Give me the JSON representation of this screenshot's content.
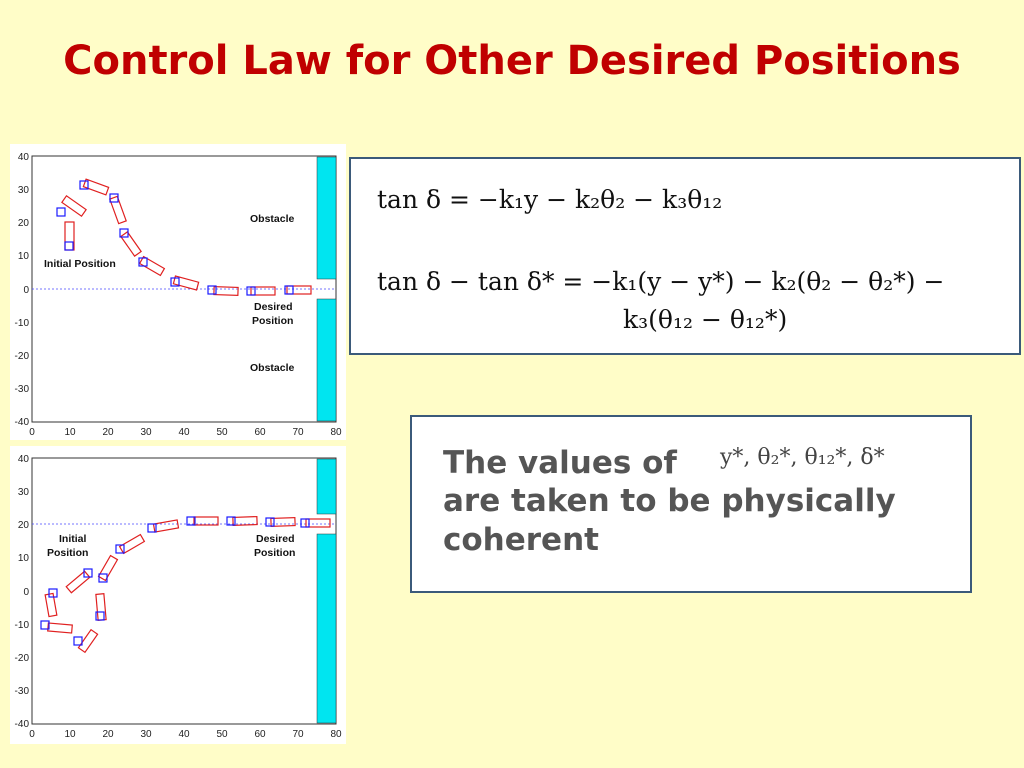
{
  "title": "Control Law for Other Desired Positions",
  "plots": [
    {
      "id": "top",
      "y_ticks": [
        "40",
        "30",
        "20",
        "10",
        "0",
        "-10",
        "-20",
        "-30",
        "-40"
      ],
      "x_ticks": [
        "0",
        "10",
        "20",
        "30",
        "40",
        "50",
        "60",
        "70",
        "80"
      ],
      "labels": {
        "obstacle_upper": "Obstacle",
        "obstacle_lower": "Obstacle",
        "initial": "Initial Position",
        "desired_line1": "Desired",
        "desired_line2": "Position"
      }
    },
    {
      "id": "bottom",
      "y_ticks": [
        "40",
        "30",
        "20",
        "10",
        "0",
        "-10",
        "-20",
        "-30",
        "-40"
      ],
      "x_ticks": [
        "0",
        "10",
        "20",
        "30",
        "40",
        "50",
        "60",
        "70",
        "80"
      ],
      "labels": {
        "initial_line1": "Initial",
        "initial_line2": "Position",
        "desired_line1": "Desired",
        "desired_line2": "Position"
      }
    }
  ],
  "equations": {
    "eq1": "tan δ = −k₁y − k₂θ₂ − k₃θ₁₂",
    "eq2_line1": "tan δ − tan δ* = −k₁(y − y*) − k₂(θ₂ − θ₂*) −",
    "eq2_line2": "k₃(θ₁₂ − θ₁₂*)"
  },
  "note": {
    "line1": "The values of",
    "symbols": "y*, θ₂*, θ₁₂*, δ*",
    "line2": "are taken to be physically",
    "line3": "coherent"
  },
  "colors": {
    "title": "#c00000",
    "obstacle": "#00e5f0",
    "trailer_body": "#e02020",
    "tractor_body": "#1a1aff",
    "box_border": "#3b5a7a"
  }
}
